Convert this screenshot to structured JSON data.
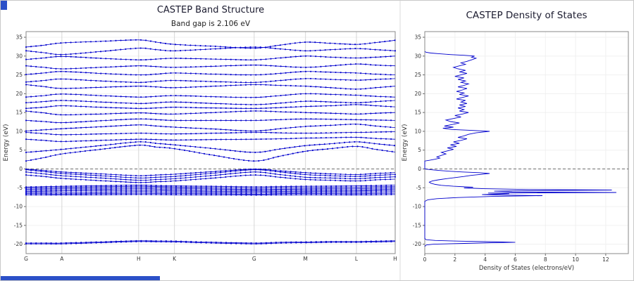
{
  "decorations": {
    "corner_color": "#2b50c8",
    "scrollbar_color": "#2b50c8"
  },
  "chart_data": [
    {
      "type": "line",
      "title": "CASTEP Band Structure",
      "subtitle": "Band gap is 2.106 eV",
      "band_gap_eV": 2.106,
      "xlabel": "",
      "ylabel": "Energy (eV)",
      "ylim": [
        -22.5,
        36.5
      ],
      "yticks": [
        -20,
        -15,
        -10,
        -5,
        0,
        5,
        10,
        15,
        20,
        25,
        30,
        35
      ],
      "fermi_level": 0,
      "color": "#0000cd",
      "grid": true,
      "kpoint_labels": [
        "G",
        "A",
        "H",
        "K",
        "G",
        "M",
        "L",
        "H"
      ],
      "kpoint_positions": [
        0,
        0.097,
        0.305,
        0.402,
        0.618,
        0.757,
        0.895,
        1.0
      ],
      "sample_positions": [
        0,
        0.0485,
        0.097,
        0.201,
        0.305,
        0.3535,
        0.402,
        0.51,
        0.618,
        0.6875,
        0.757,
        0.826,
        0.895,
        0.9475,
        1.0
      ],
      "bands": [
        [
          -19.9,
          -19.9,
          -19.9,
          -19.6,
          -19.3,
          -19.35,
          -19.4,
          -19.7,
          -19.9,
          -19.7,
          -19.6,
          -19.5,
          -19.5,
          -19.4,
          -19.3
        ],
        [
          -19.7,
          -19.7,
          -19.7,
          -19.4,
          -19.1,
          -19.15,
          -19.2,
          -19.5,
          -19.7,
          -19.5,
          -19.4,
          -19.3,
          -19.3,
          -19.2,
          -19.1
        ],
        [
          -6.9,
          -6.9,
          -6.9,
          -6.85,
          -6.8,
          -6.82,
          -6.85,
          -6.9,
          -6.95,
          -6.9,
          -6.85,
          -6.87,
          -6.9,
          -6.85,
          -6.8
        ],
        [
          -6.6,
          -6.62,
          -6.65,
          -6.55,
          -6.45,
          -6.5,
          -6.55,
          -6.62,
          -6.7,
          -6.6,
          -6.5,
          -6.55,
          -6.6,
          -6.52,
          -6.45
        ],
        [
          -6.3,
          -6.32,
          -6.35,
          -6.2,
          -6.05,
          -6.12,
          -6.2,
          -6.3,
          -6.4,
          -6.3,
          -6.2,
          -6.22,
          -6.25,
          -6.15,
          -6.05
        ],
        [
          -6.0,
          -5.95,
          -5.9,
          -5.8,
          -5.7,
          -5.77,
          -5.85,
          -5.95,
          -6.05,
          -5.97,
          -5.9,
          -5.9,
          -5.9,
          -5.8,
          -5.7
        ],
        [
          -5.7,
          -5.65,
          -5.6,
          -5.45,
          -5.3,
          -5.4,
          -5.5,
          -5.62,
          -5.75,
          -5.67,
          -5.6,
          -5.6,
          -5.6,
          -5.48,
          -5.35
        ],
        [
          -5.4,
          -5.32,
          -5.25,
          -5.1,
          -4.95,
          -5.05,
          -5.15,
          -5.3,
          -5.45,
          -5.37,
          -5.3,
          -5.27,
          -5.25,
          -5.12,
          -5.0
        ],
        [
          -5.1,
          -5.0,
          -4.9,
          -4.75,
          -4.6,
          -4.7,
          -4.8,
          -4.95,
          -5.1,
          -5.0,
          -4.95,
          -4.9,
          -4.85,
          -4.75,
          -4.65
        ],
        [
          -4.8,
          -4.7,
          -4.6,
          -4.45,
          -4.3,
          -4.4,
          -4.5,
          -4.62,
          -4.75,
          -4.67,
          -4.6,
          -4.55,
          -4.5,
          -4.4,
          -4.3
        ],
        [
          -0.05,
          -0.4,
          -0.8,
          -1.3,
          -1.8,
          -1.6,
          -1.4,
          -0.7,
          -0.05,
          -0.5,
          -1.0,
          -1.3,
          -1.5,
          -1.2,
          -1.0
        ],
        [
          -0.2,
          -0.7,
          -1.2,
          -1.8,
          -2.4,
          -2.2,
          -2.0,
          -1.1,
          -0.2,
          -0.8,
          -1.5,
          -1.8,
          -2.0,
          -1.7,
          -1.5
        ],
        [
          -0.8,
          -1.3,
          -1.8,
          -2.4,
          -3.0,
          -2.8,
          -2.6,
          -1.7,
          -0.8,
          -1.5,
          -2.2,
          -2.4,
          -2.6,
          -2.3,
          -2.1
        ],
        [
          -1.6,
          -2.0,
          -2.5,
          -3.1,
          -3.6,
          -3.4,
          -3.2,
          -2.4,
          -1.6,
          -2.2,
          -2.8,
          -3.0,
          -3.2,
          -2.9,
          -2.7
        ],
        [
          2.1,
          3.0,
          4.0,
          5.2,
          6.3,
          5.8,
          5.4,
          3.6,
          2.1,
          3.4,
          4.7,
          5.4,
          6.0,
          5.2,
          4.5
        ],
        [
          4.4,
          4.8,
          5.2,
          6.2,
          7.2,
          6.8,
          6.4,
          5.4,
          4.4,
          5.3,
          6.2,
          6.7,
          7.2,
          6.7,
          6.2
        ],
        [
          7.9,
          7.6,
          7.3,
          7.6,
          7.9,
          7.8,
          7.7,
          7.8,
          7.9,
          8.0,
          8.2,
          8.3,
          8.4,
          8.1,
          7.9
        ],
        [
          9.7,
          9.4,
          9.1,
          9.3,
          9.5,
          9.4,
          9.3,
          9.5,
          9.7,
          9.6,
          9.5,
          9.6,
          9.7,
          9.8,
          9.9
        ],
        [
          10.1,
          10.4,
          10.7,
          11.2,
          11.7,
          11.4,
          11.1,
          10.6,
          10.1,
          10.7,
          11.3,
          11.6,
          11.9,
          11.4,
          11.0
        ],
        [
          12.9,
          12.6,
          12.3,
          12.8,
          13.3,
          13.1,
          12.9,
          12.9,
          12.9,
          13.1,
          13.3,
          13.2,
          13.1,
          13.0,
          12.9
        ],
        [
          15.4,
          14.9,
          14.4,
          14.6,
          14.9,
          14.7,
          14.6,
          15.0,
          15.4,
          15.2,
          15.0,
          14.8,
          14.6,
          14.8,
          15.0
        ],
        [
          16.1,
          16.4,
          16.8,
          16.4,
          16.1,
          16.2,
          16.4,
          16.2,
          16.1,
          16.3,
          16.6,
          16.8,
          17.1,
          16.8,
          16.5
        ],
        [
          17.6,
          17.9,
          18.2,
          17.8,
          17.4,
          17.6,
          17.8,
          17.4,
          17.1,
          17.5,
          18.0,
          17.8,
          17.6,
          17.9,
          18.2
        ],
        [
          19.1,
          19.5,
          19.9,
          19.5,
          19.1,
          19.3,
          19.5,
          19.2,
          19.0,
          19.5,
          20.0,
          19.8,
          19.6,
          19.3,
          19.1
        ],
        [
          22.4,
          21.9,
          21.4,
          21.7,
          22.0,
          21.8,
          21.6,
          22.0,
          22.4,
          22.2,
          22.0,
          21.6,
          21.2,
          21.6,
          22.0
        ],
        [
          23.1,
          23.5,
          23.9,
          23.4,
          23.0,
          23.3,
          23.5,
          23.2,
          23.0,
          23.5,
          24.0,
          23.8,
          23.6,
          23.8,
          24.0
        ],
        [
          25.1,
          25.5,
          25.9,
          25.4,
          25.0,
          25.2,
          25.5,
          25.2,
          25.0,
          25.4,
          25.9,
          25.7,
          25.5,
          25.2,
          25.0
        ],
        [
          27.4,
          27.0,
          26.6,
          27.0,
          27.4,
          27.2,
          27.0,
          27.3,
          27.6,
          27.3,
          27.0,
          27.4,
          27.9,
          27.6,
          27.4
        ],
        [
          29.1,
          29.5,
          29.9,
          29.4,
          29.0,
          29.2,
          29.4,
          29.2,
          29.0,
          29.5,
          30.0,
          29.7,
          29.5,
          29.7,
          30.0
        ],
        [
          31.4,
          30.9,
          30.4,
          31.2,
          32.1,
          31.7,
          31.4,
          31.9,
          32.4,
          31.9,
          31.4,
          31.7,
          32.0,
          31.7,
          31.4
        ],
        [
          32.4,
          32.9,
          33.5,
          33.9,
          34.3,
          33.7,
          33.1,
          32.6,
          32.1,
          32.9,
          33.7,
          33.4,
          33.1,
          33.6,
          34.2
        ]
      ]
    },
    {
      "type": "line",
      "title": "CASTEP Density of States",
      "xlabel": "Density of States (electrons/eV)",
      "ylabel": "Energy (eV)",
      "xlim": [
        0,
        13.5
      ],
      "xticks": [
        0,
        2,
        4,
        6,
        8,
        10,
        12
      ],
      "ylim": [
        -22.5,
        36.5
      ],
      "yticks": [
        -20,
        -15,
        -10,
        -5,
        0,
        5,
        10,
        15,
        20,
        25,
        30,
        35
      ],
      "fermi_level": 0,
      "color": "#0000cd",
      "points": [
        [
          -20.6,
          0
        ],
        [
          -20.2,
          0.1
        ],
        [
          -20.0,
          0.6
        ],
        [
          -19.8,
          2.6
        ],
        [
          -19.6,
          4.4
        ],
        [
          -19.5,
          6.0
        ],
        [
          -19.35,
          4.6
        ],
        [
          -19.2,
          2.4
        ],
        [
          -19.0,
          0.7
        ],
        [
          -18.8,
          0.1
        ],
        [
          -18.5,
          0
        ],
        [
          -8.6,
          0
        ],
        [
          -8.2,
          0.2
        ],
        [
          -7.9,
          0.8
        ],
        [
          -7.6,
          2.2
        ],
        [
          -7.3,
          4.5
        ],
        [
          -7.1,
          7.8
        ],
        [
          -6.95,
          5.2
        ],
        [
          -6.8,
          3.8
        ],
        [
          -6.6,
          5.6
        ],
        [
          -6.4,
          4.2
        ],
        [
          -6.25,
          12.7
        ],
        [
          -6.1,
          5.8
        ],
        [
          -5.9,
          4.6
        ],
        [
          -5.75,
          7.4
        ],
        [
          -5.6,
          12.4
        ],
        [
          -5.45,
          6.8
        ],
        [
          -5.25,
          3.9
        ],
        [
          -5.05,
          2.6
        ],
        [
          -4.85,
          3.2
        ],
        [
          -4.6,
          1.9
        ],
        [
          -4.35,
          1.1
        ],
        [
          -4.1,
          0.7
        ],
        [
          -3.8,
          0.4
        ],
        [
          -3.5,
          0.3
        ],
        [
          -3.2,
          0.5
        ],
        [
          -2.9,
          0.9
        ],
        [
          -2.6,
          1.4
        ],
        [
          -2.3,
          2.0
        ],
        [
          -2.0,
          2.6
        ],
        [
          -1.7,
          3.1
        ],
        [
          -1.45,
          3.7
        ],
        [
          -1.2,
          4.3
        ],
        [
          -1.0,
          3.6
        ],
        [
          -0.8,
          2.5
        ],
        [
          -0.6,
          1.6
        ],
        [
          -0.4,
          0.9
        ],
        [
          -0.2,
          0.4
        ],
        [
          -0.05,
          0.1
        ],
        [
          0.0,
          0
        ],
        [
          2.1,
          0
        ],
        [
          2.3,
          0.3
        ],
        [
          2.6,
          0.7
        ],
        [
          2.9,
          1.0
        ],
        [
          3.2,
          0.8
        ],
        [
          3.6,
          1.1
        ],
        [
          4.0,
          1.4
        ],
        [
          4.4,
          1.1
        ],
        [
          4.8,
          1.5
        ],
        [
          5.2,
          1.9
        ],
        [
          5.6,
          1.5
        ],
        [
          6.0,
          2.1
        ],
        [
          6.4,
          1.7
        ],
        [
          6.8,
          2.3
        ],
        [
          7.2,
          1.9
        ],
        [
          7.6,
          2.4
        ],
        [
          8.0,
          2.8
        ],
        [
          8.4,
          2.2
        ],
        [
          8.8,
          2.6
        ],
        [
          9.2,
          2.9
        ],
        [
          9.6,
          3.4
        ],
        [
          10.0,
          4.3
        ],
        [
          10.25,
          3.1
        ],
        [
          10.5,
          1.8
        ],
        [
          10.8,
          1.2
        ],
        [
          11.1,
          1.9
        ],
        [
          11.4,
          1.3
        ],
        [
          11.8,
          1.8
        ],
        [
          12.2,
          2.3
        ],
        [
          12.6,
          1.7
        ],
        [
          13.0,
          1.4
        ],
        [
          13.4,
          1.9
        ],
        [
          13.8,
          2.4
        ],
        [
          14.2,
          2.0
        ],
        [
          14.6,
          2.5
        ],
        [
          15.0,
          2.9
        ],
        [
          15.4,
          2.3
        ],
        [
          15.8,
          2.6
        ],
        [
          16.2,
          2.2
        ],
        [
          16.6,
          2.7
        ],
        [
          17.0,
          2.3
        ],
        [
          17.4,
          2.8
        ],
        [
          17.8,
          2.4
        ],
        [
          18.2,
          2.7
        ],
        [
          18.6,
          2.1
        ],
        [
          19.0,
          2.5
        ],
        [
          19.4,
          2.9
        ],
        [
          19.8,
          2.3
        ],
        [
          20.2,
          2.6
        ],
        [
          20.6,
          2.1
        ],
        [
          21.0,
          2.5
        ],
        [
          21.4,
          2.8
        ],
        [
          21.8,
          2.2
        ],
        [
          22.2,
          2.6
        ],
        [
          22.6,
          2.9
        ],
        [
          23.0,
          2.4
        ],
        [
          23.4,
          2.7
        ],
        [
          23.8,
          2.2
        ],
        [
          24.2,
          2.6
        ],
        [
          24.6,
          2.0
        ],
        [
          25.0,
          2.4
        ],
        [
          25.4,
          2.8
        ],
        [
          25.8,
          2.3
        ],
        [
          26.2,
          2.7
        ],
        [
          26.6,
          2.2
        ],
        [
          27.0,
          1.9
        ],
        [
          27.4,
          2.3
        ],
        [
          27.8,
          2.7
        ],
        [
          28.2,
          2.4
        ],
        [
          28.6,
          2.8
        ],
        [
          29.0,
          3.1
        ],
        [
          29.4,
          3.4
        ],
        [
          29.7,
          3.1
        ],
        [
          30.0,
          3.3
        ],
        [
          30.2,
          2.6
        ],
        [
          30.4,
          1.7
        ],
        [
          30.6,
          1.0
        ],
        [
          30.8,
          0.4
        ],
        [
          31.0,
          0.1
        ],
        [
          31.2,
          0
        ]
      ]
    }
  ]
}
